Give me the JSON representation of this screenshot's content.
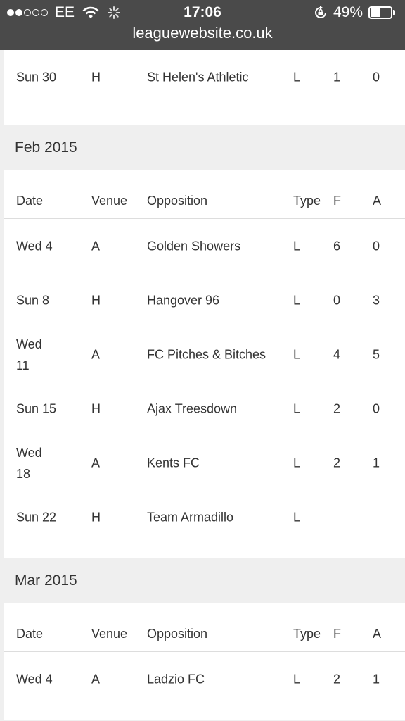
{
  "status_bar": {
    "carrier": "EE",
    "time": "17:06",
    "battery_pct": "49%",
    "battery_level": 0.49,
    "signal_dots_filled": 2,
    "signal_dots_total": 5,
    "icons": [
      "wifi-icon",
      "loading-spinner-icon",
      "rotation-lock-icon",
      "battery-icon"
    ]
  },
  "url": "leaguewebsite.co.uk",
  "headers": {
    "date": "Date",
    "venue": "Venue",
    "opposition": "Opposition",
    "type": "Type",
    "f": "F",
    "a": "A"
  },
  "top_row": {
    "date": "Sun 30",
    "venue": "H",
    "opposition": "St Helen's Athletic",
    "type": "L",
    "f": "1",
    "a": "0"
  },
  "months": [
    {
      "label": "Feb 2015",
      "rows": [
        {
          "date": "Wed 4",
          "venue": "A",
          "opposition": "Golden Showers",
          "type": "L",
          "f": "6",
          "a": "0"
        },
        {
          "date": "Sun 8",
          "venue": "H",
          "opposition": "Hangover 96",
          "type": "L",
          "f": "0",
          "a": "3"
        },
        {
          "date": "Wed 11",
          "venue": "A",
          "opposition": "FC Pitches & Bitches",
          "type": "L",
          "f": "4",
          "a": "5"
        },
        {
          "date": "Sun 15",
          "venue": "H",
          "opposition": "Ajax Treesdown",
          "type": "L",
          "f": "2",
          "a": "0"
        },
        {
          "date": "Wed 18",
          "venue": "A",
          "opposition": "Kents FC",
          "type": "L",
          "f": "2",
          "a": "1"
        },
        {
          "date": "Sun 22",
          "venue": "H",
          "opposition": "Team Armadillo",
          "type": "L",
          "f": "",
          "a": ""
        }
      ]
    },
    {
      "label": "Mar 2015",
      "rows": [
        {
          "date": "Wed 4",
          "venue": "A",
          "opposition": "Ladzio FC",
          "type": "L",
          "f": "2",
          "a": "1"
        }
      ]
    }
  ]
}
